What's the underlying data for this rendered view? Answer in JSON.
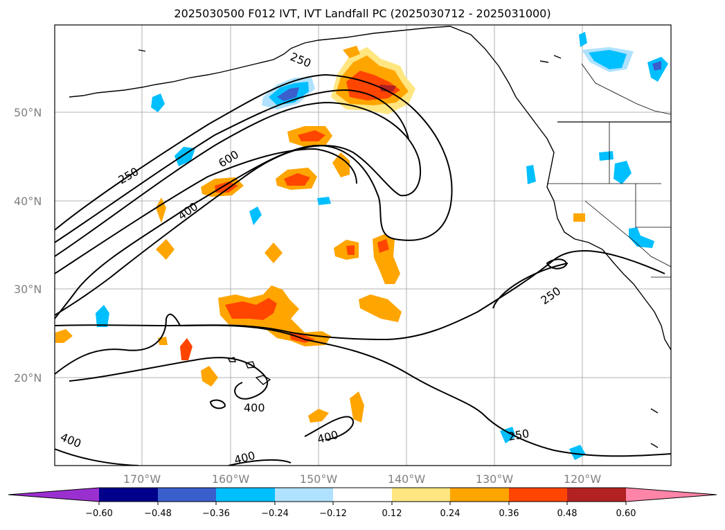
{
  "title": "2025030500 F012 IVT, IVT Landfall PC (2025030712 - 2025031000)",
  "lat_labels": [
    "50°N",
    "40°N",
    "30°N",
    "20°N"
  ],
  "lon_labels": [
    "170°W",
    "160°W",
    "150°W",
    "140°W",
    "130°W",
    "120°W"
  ],
  "contour_labels": [
    "250",
    "250",
    "600",
    "400",
    "250",
    "400",
    "400",
    "400",
    "250",
    "400"
  ],
  "colorbar": {
    "ticks": [
      "−0.60",
      "−0.48",
      "−0.36",
      "−0.24",
      "−0.12",
      "0.12",
      "0.24",
      "0.36",
      "0.48",
      "0.60"
    ],
    "colors": [
      "#9b30d0",
      "#00008b",
      "#3a5fcd",
      "#00bfff",
      "#b0e2ff",
      "#ffffff",
      "#ffe680",
      "#ffa500",
      "#ff4500",
      "#b22222",
      "#ff85a8"
    ]
  },
  "colors": {
    "land_line": "#000000",
    "grid": "#b0b0b0",
    "label_gray": "#808080"
  }
}
